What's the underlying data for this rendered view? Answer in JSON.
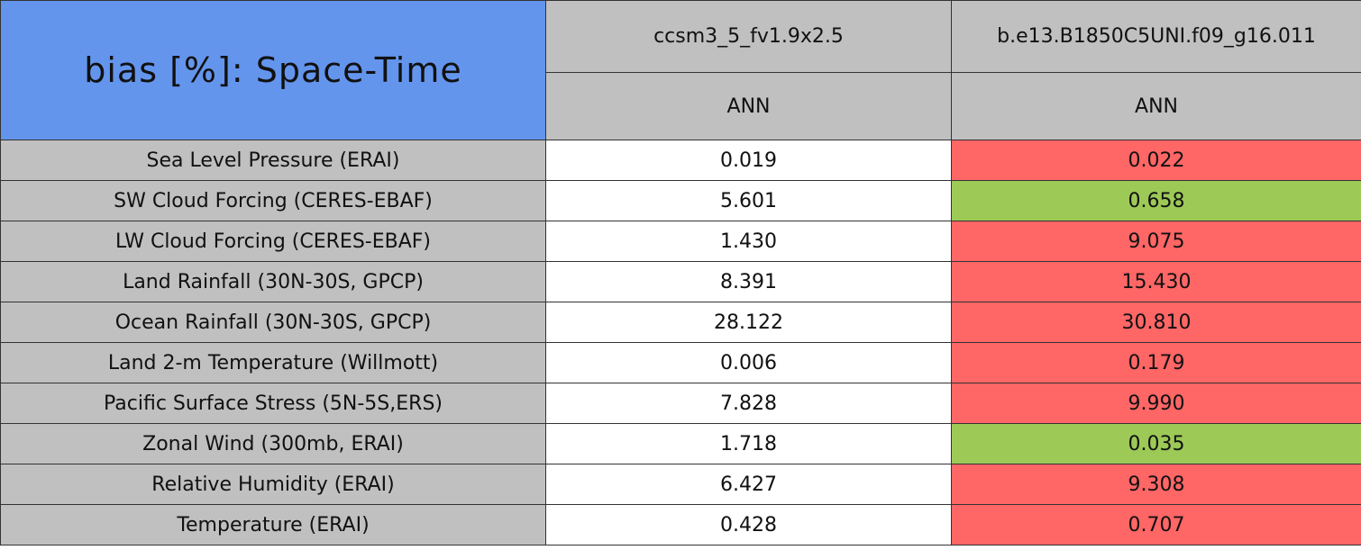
{
  "table": {
    "title": "bias [%]: Space-Time",
    "title_color": "#6495ed",
    "header_color": "#c0c0c0",
    "label_color": "#c0c0c0",
    "columns": [
      "ccsm3_5_fv1.9x2.5",
      "b.e13.B1850C5UNI.f09_g16.011"
    ],
    "subcolumns": [
      "ANN",
      "ANN"
    ],
    "rows": [
      {
        "label": "Sea Level Pressure (ERAI)",
        "cells": [
          "0.019",
          "0.022"
        ],
        "colors": [
          "#ffffff",
          "#ff6666"
        ]
      },
      {
        "label": "SW Cloud Forcing (CERES-EBAF)",
        "cells": [
          "5.601",
          "0.658"
        ],
        "colors": [
          "#ffffff",
          "#9dc957"
        ]
      },
      {
        "label": "LW Cloud Forcing (CERES-EBAF)",
        "cells": [
          "1.430",
          "9.075"
        ],
        "colors": [
          "#ffffff",
          "#ff6666"
        ]
      },
      {
        "label": "Land Rainfall (30N-30S, GPCP)",
        "cells": [
          "8.391",
          "15.430"
        ],
        "colors": [
          "#ffffff",
          "#ff6666"
        ]
      },
      {
        "label": "Ocean Rainfall (30N-30S, GPCP)",
        "cells": [
          "28.122",
          "30.810"
        ],
        "colors": [
          "#ffffff",
          "#ff6666"
        ]
      },
      {
        "label": "Land 2-m Temperature (Willmott)",
        "cells": [
          "0.006",
          "0.179"
        ],
        "colors": [
          "#ffffff",
          "#ff6666"
        ]
      },
      {
        "label": "Pacific Surface Stress (5N-5S,ERS)",
        "cells": [
          "7.828",
          "9.990"
        ],
        "colors": [
          "#ffffff",
          "#ff6666"
        ]
      },
      {
        "label": "Zonal Wind (300mb, ERAI)",
        "cells": [
          "1.718",
          "0.035"
        ],
        "colors": [
          "#ffffff",
          "#9dc957"
        ]
      },
      {
        "label": "Relative Humidity (ERAI)",
        "cells": [
          "6.427",
          "9.308"
        ],
        "colors": [
          "#ffffff",
          "#ff6666"
        ]
      },
      {
        "label": "Temperature (ERAI)",
        "cells": [
          "0.428",
          "0.707"
        ],
        "colors": [
          "#ffffff",
          "#ff6666"
        ]
      }
    ]
  }
}
